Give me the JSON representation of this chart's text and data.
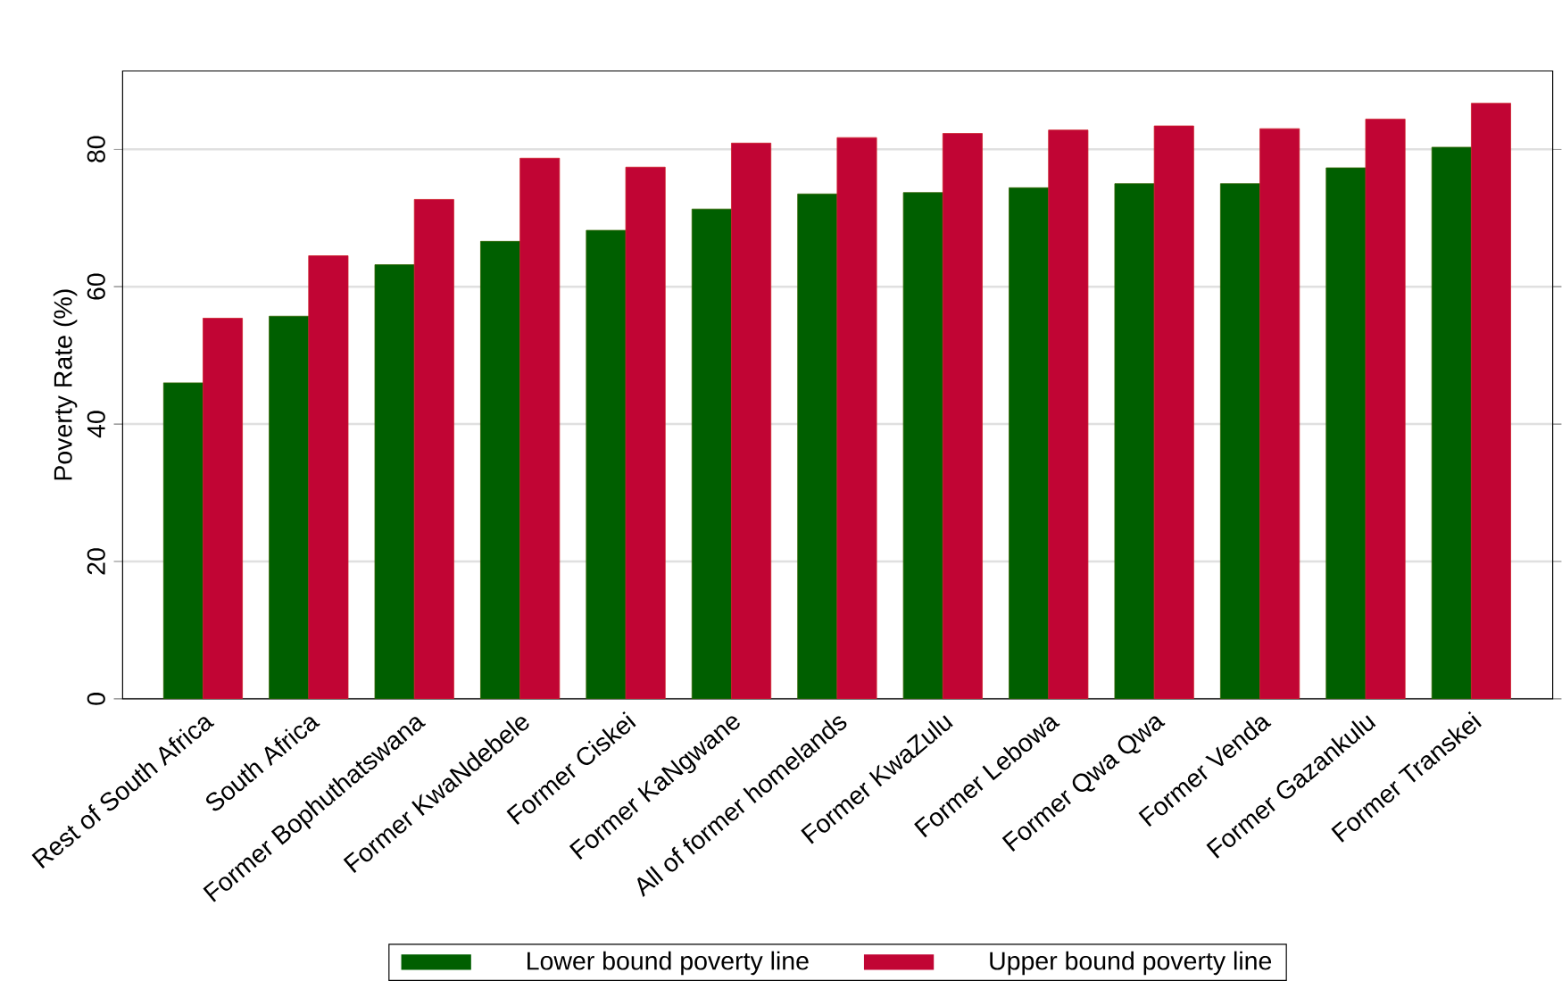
{
  "chart_data": {
    "type": "bar",
    "ylabel": "Poverty Rate (%)",
    "categories": [
      "Rest of South Africa",
      "South Africa",
      "Former Bophuthatswana",
      "Former KwaNdebele",
      "Former Ciskei",
      "Former KaNgwane",
      "All of former homelands",
      "Former KwaZulu",
      "Former Lebowa",
      "Former Qwa Qwa",
      "Former Venda",
      "Former Gazankulu",
      "Former Transkei"
    ],
    "series": [
      {
        "name": "Lower bound poverty line",
        "color": "#005f00",
        "values": [
          46.0,
          55.7,
          63.2,
          66.6,
          68.2,
          71.3,
          73.5,
          73.7,
          74.4,
          75.0,
          75.0,
          77.3,
          80.3
        ]
      },
      {
        "name": "Upper bound poverty line",
        "color": "#c10534",
        "values": [
          55.4,
          64.5,
          72.7,
          78.7,
          77.4,
          80.9,
          81.7,
          82.3,
          82.8,
          83.4,
          83.0,
          84.4,
          86.7
        ]
      }
    ],
    "ylim": [
      0,
      91.4
    ],
    "yticks": [
      0,
      20,
      40,
      60,
      80
    ],
    "grid": "y",
    "legend": "bottom"
  }
}
